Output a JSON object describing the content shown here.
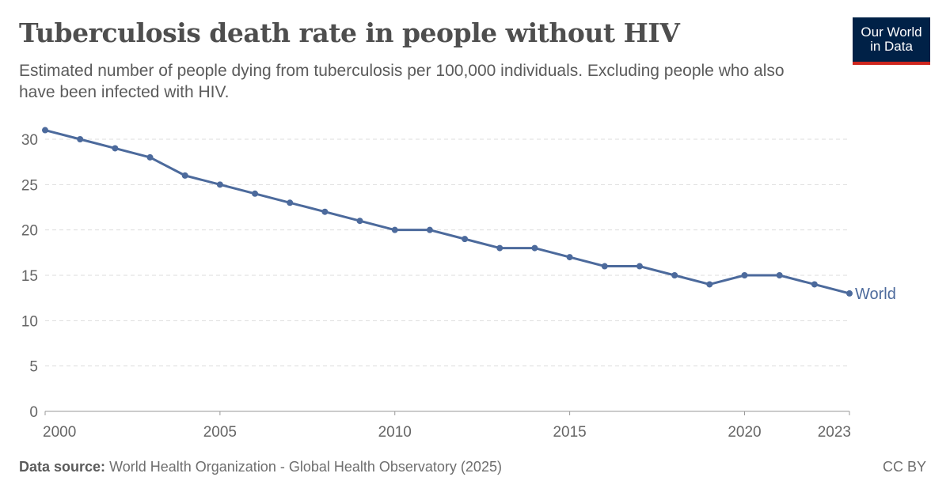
{
  "header": {
    "title": "Tuberculosis death rate in people without HIV",
    "subtitle": "Estimated number of people dying from tuberculosis per 100,000 individuals. Excluding people who also have been infected with HIV.",
    "logo": "Our World in Data",
    "logo_line1": "Our World",
    "logo_line2": "in Data"
  },
  "footer": {
    "source_label": "Data source:",
    "source": "World Health Organization - Global Health Observatory (2025)",
    "license": "CC BY"
  },
  "chart_data": {
    "type": "line",
    "title": "Tuberculosis death rate in people without HIV",
    "xlabel": "",
    "ylabel": "",
    "xlim": [
      2000,
      2023
    ],
    "ylim": [
      0,
      30
    ],
    "x_ticks": [
      2000,
      2005,
      2010,
      2015,
      2020,
      2023
    ],
    "y_ticks": [
      0,
      5,
      10,
      15,
      20,
      25,
      30
    ],
    "grid": "horizontal dashed",
    "series": [
      {
        "name": "World",
        "color": "#4c6a9c",
        "x": [
          2000,
          2001,
          2002,
          2003,
          2004,
          2005,
          2006,
          2007,
          2008,
          2009,
          2010,
          2011,
          2012,
          2013,
          2014,
          2015,
          2016,
          2017,
          2018,
          2019,
          2020,
          2021,
          2022,
          2023
        ],
        "y": [
          31,
          30,
          29,
          28,
          26,
          25,
          24,
          23,
          22,
          21,
          20,
          20,
          19,
          18,
          18,
          17,
          16,
          16,
          15,
          14,
          15,
          15,
          14,
          13
        ]
      }
    ]
  }
}
